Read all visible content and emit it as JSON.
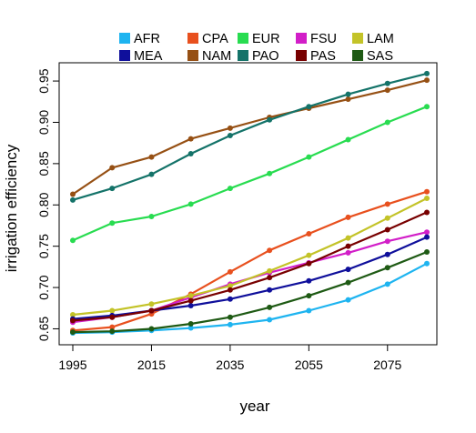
{
  "chart_data": {
    "type": "line",
    "title": "",
    "xlabel": "year",
    "ylabel": "irrigation efficiency",
    "xlim": [
      1995,
      2085
    ],
    "ylim": [
      0.645,
      0.96
    ],
    "x": [
      1995,
      2005,
      2015,
      2025,
      2035,
      2045,
      2055,
      2065,
      2075,
      2085
    ],
    "xticks": [
      1995,
      2015,
      2035,
      2055,
      2075
    ],
    "xtick_labels": [
      "1995",
      "2015",
      "2035",
      "2055",
      "2075"
    ],
    "yticks": [
      0.65,
      0.7,
      0.75,
      0.8,
      0.85,
      0.9,
      0.95
    ],
    "ytick_labels": [
      "0.65",
      "0.70",
      "0.75",
      "0.80",
      "0.85",
      "0.90",
      "0.95"
    ],
    "grid": false,
    "legend_position": "top-center",
    "series": [
      {
        "name": "AFR",
        "color": "#1eb4f0",
        "values": [
          0.645,
          0.646,
          0.648,
          0.651,
          0.655,
          0.661,
          0.672,
          0.685,
          0.704,
          0.729
        ]
      },
      {
        "name": "CPA",
        "color": "#e8501e",
        "values": [
          0.648,
          0.652,
          0.668,
          0.692,
          0.719,
          0.745,
          0.765,
          0.785,
          0.801,
          0.816
        ]
      },
      {
        "name": "EUR",
        "color": "#28dc50",
        "values": [
          0.757,
          0.778,
          0.786,
          0.801,
          0.82,
          0.838,
          0.858,
          0.879,
          0.9,
          0.919
        ]
      },
      {
        "name": "FSU",
        "color": "#d21ec8",
        "values": [
          0.658,
          0.664,
          0.672,
          0.688,
          0.704,
          0.718,
          0.73,
          0.742,
          0.756,
          0.767
        ]
      },
      {
        "name": "LAM",
        "color": "#c3c328",
        "values": [
          0.667,
          0.672,
          0.68,
          0.69,
          0.702,
          0.72,
          0.739,
          0.76,
          0.784,
          0.808
        ]
      },
      {
        "name": "MEA",
        "color": "#0f0f9b",
        "values": [
          0.662,
          0.666,
          0.672,
          0.678,
          0.686,
          0.697,
          0.708,
          0.722,
          0.74,
          0.761
        ]
      },
      {
        "name": "NAM",
        "color": "#965014",
        "values": [
          0.813,
          0.845,
          0.858,
          0.88,
          0.893,
          0.906,
          0.917,
          0.928,
          0.939,
          0.951
        ]
      },
      {
        "name": "PAO",
        "color": "#147369",
        "values": [
          0.806,
          0.82,
          0.837,
          0.862,
          0.884,
          0.903,
          0.919,
          0.934,
          0.947,
          0.959
        ]
      },
      {
        "name": "PAS",
        "color": "#780000",
        "values": [
          0.66,
          0.664,
          0.672,
          0.684,
          0.697,
          0.712,
          0.729,
          0.75,
          0.77,
          0.791
        ]
      },
      {
        "name": "SAS",
        "color": "#1e5a14",
        "values": [
          0.646,
          0.647,
          0.65,
          0.656,
          0.664,
          0.676,
          0.69,
          0.706,
          0.724,
          0.743
        ]
      }
    ]
  }
}
